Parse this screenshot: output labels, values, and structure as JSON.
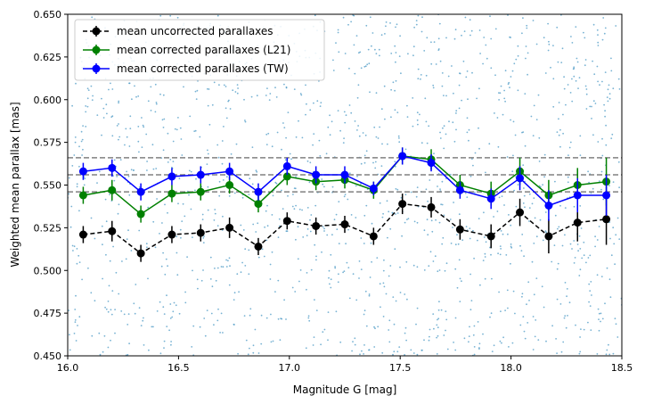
{
  "chart_data": {
    "type": "scatter",
    "xlabel": "Magnitude G [mag]",
    "ylabel": "Weighted mean parallax [mas]",
    "xlim": [
      16.0,
      18.5
    ],
    "ylim": [
      0.45,
      0.65
    ],
    "x_ticks": [
      "16.0",
      "16.5",
      "17.0",
      "17.5",
      "18.0",
      "18.5"
    ],
    "y_ticks": [
      "0.450",
      "0.475",
      "0.500",
      "0.525",
      "0.550",
      "0.575",
      "0.600",
      "0.625",
      "0.650"
    ],
    "x_tick_values": [
      16.0,
      16.5,
      17.0,
      17.5,
      18.0,
      18.5
    ],
    "y_tick_values": [
      0.45,
      0.475,
      0.5,
      0.525,
      0.55,
      0.575,
      0.6,
      0.625,
      0.65
    ],
    "reference_lines": [
      0.546,
      0.556,
      0.566
    ],
    "reference_line_color": "#808080",
    "background_points": {
      "color": "#4a98c4",
      "description_count": 1500,
      "x_range": [
        16.0,
        18.5
      ],
      "y_range": [
        0.45,
        0.65
      ]
    },
    "x": [
      16.07,
      16.2,
      16.33,
      16.47,
      16.6,
      16.73,
      16.86,
      16.99,
      17.12,
      17.25,
      17.38,
      17.51,
      17.64,
      17.77,
      17.91,
      18.04,
      18.17,
      18.3,
      18.43
    ],
    "series": [
      {
        "name": "mean uncorrected parallaxes",
        "color": "#000000",
        "linestyle": "dashed",
        "values": [
          0.521,
          0.523,
          0.51,
          0.521,
          0.522,
          0.525,
          0.514,
          0.529,
          0.526,
          0.527,
          0.52,
          0.539,
          0.537,
          0.524,
          0.52,
          0.534,
          0.52,
          0.528,
          0.53
        ],
        "errors": [
          0.005,
          0.006,
          0.005,
          0.005,
          0.005,
          0.006,
          0.005,
          0.005,
          0.005,
          0.005,
          0.005,
          0.006,
          0.006,
          0.006,
          0.007,
          0.008,
          0.01,
          0.011,
          0.015
        ]
      },
      {
        "name": "mean corrected parallaxes (L21)",
        "color": "#008000",
        "linestyle": "solid",
        "values": [
          0.544,
          0.547,
          0.533,
          0.545,
          0.546,
          0.55,
          0.539,
          0.555,
          0.552,
          0.553,
          0.547,
          0.567,
          0.565,
          0.55,
          0.545,
          0.558,
          0.544,
          0.55,
          0.552
        ],
        "errors": [
          0.005,
          0.006,
          0.005,
          0.005,
          0.005,
          0.005,
          0.005,
          0.005,
          0.005,
          0.005,
          0.005,
          0.005,
          0.006,
          0.006,
          0.007,
          0.008,
          0.009,
          0.01,
          0.014
        ]
      },
      {
        "name": "mean corrected parallaxes (TW)",
        "color": "#0000ff",
        "linestyle": "solid",
        "values": [
          0.558,
          0.56,
          0.546,
          0.555,
          0.556,
          0.558,
          0.546,
          0.561,
          0.556,
          0.556,
          0.548,
          0.567,
          0.563,
          0.547,
          0.542,
          0.554,
          0.538,
          0.544,
          0.544
        ],
        "errors": [
          0.005,
          0.005,
          0.005,
          0.005,
          0.005,
          0.005,
          0.005,
          0.005,
          0.005,
          0.005,
          0.004,
          0.005,
          0.005,
          0.005,
          0.006,
          0.007,
          0.009,
          0.01,
          0.012
        ]
      }
    ],
    "legend_position": "upper-left"
  }
}
